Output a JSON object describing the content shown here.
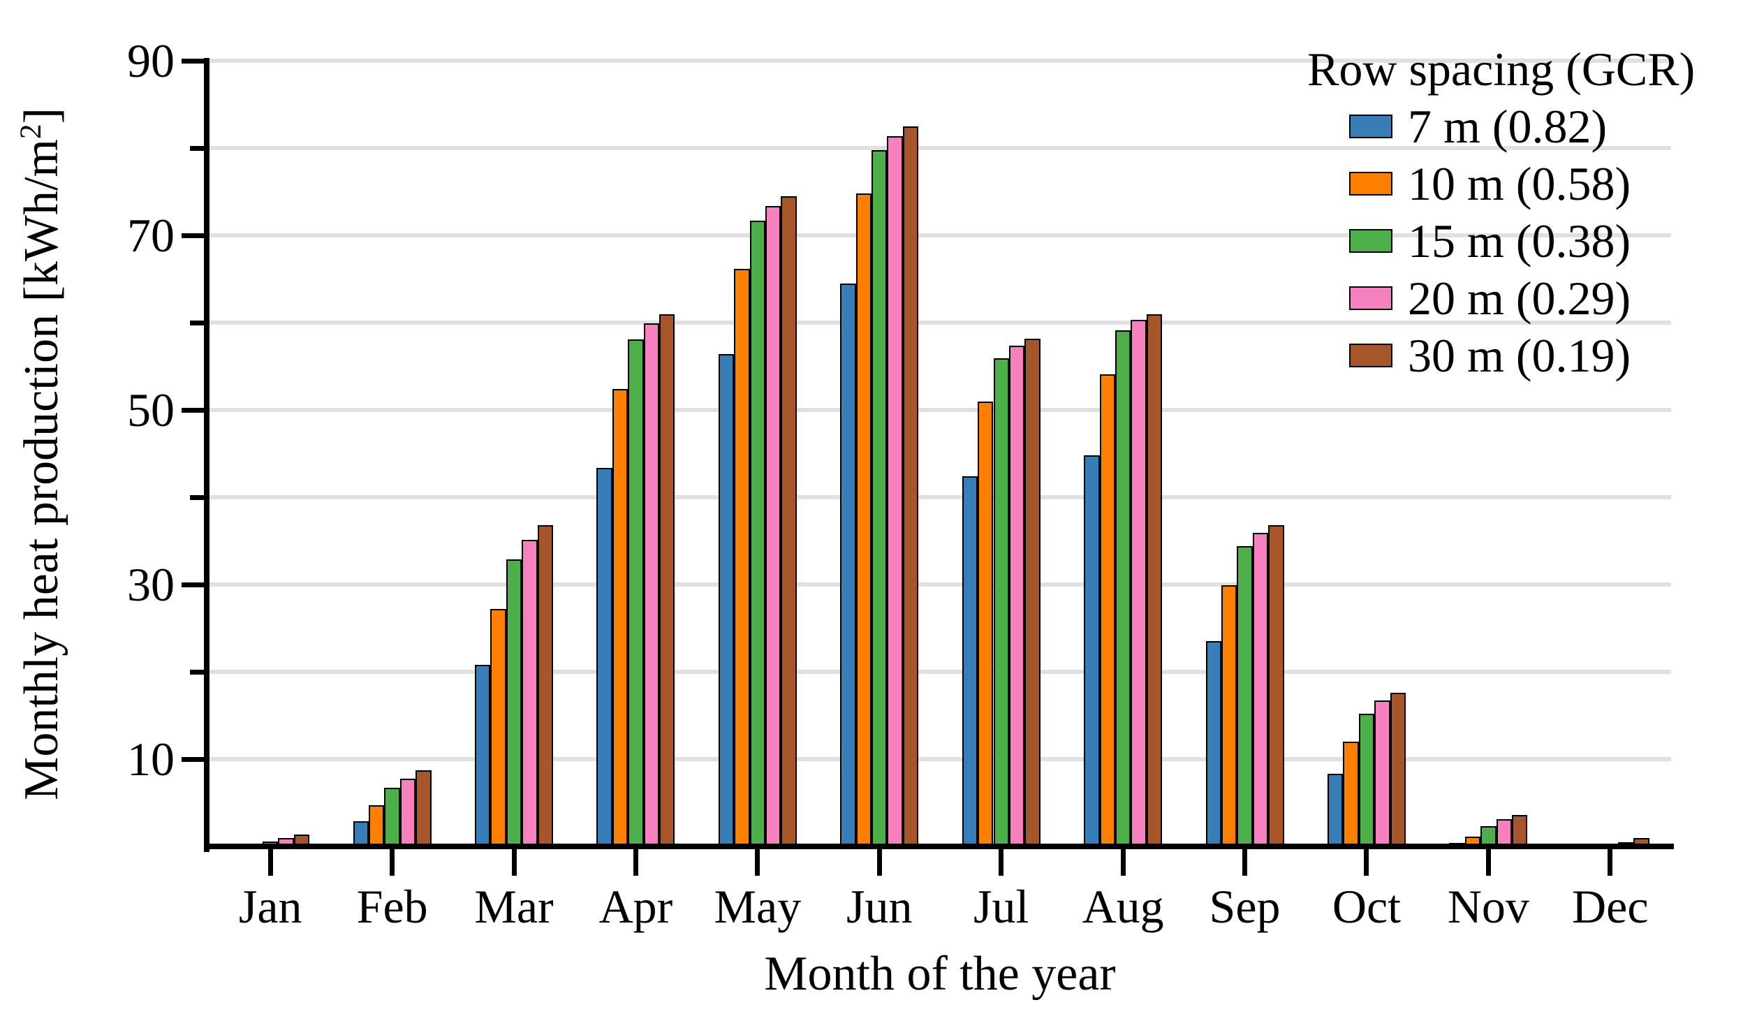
{
  "chart_data": {
    "type": "bar",
    "title": "",
    "xlabel": "Month of the year",
    "ylabel_prefix": "Monthly heat production [kWh/m",
    "ylabel_sup": "2",
    "ylabel_suffix": "]",
    "categories": [
      "Jan",
      "Feb",
      "Mar",
      "Apr",
      "May",
      "Jun",
      "Jul",
      "Aug",
      "Sep",
      "Oct",
      "Nov",
      "Dec"
    ],
    "legend_title": "Row spacing (GCR)",
    "legend_position": "upper right",
    "series": [
      {
        "name": "7 m (0.82)",
        "key": "7m",
        "color": "#377eb8",
        "values": [
          0.05,
          2.9,
          20.8,
          43.4,
          56.4,
          64.5,
          42.4,
          44.8,
          23.5,
          8.3,
          0.4,
          0.05
        ]
      },
      {
        "name": "10 m (0.58)",
        "key": "10m",
        "color": "#ff7f00",
        "values": [
          0.1,
          4.7,
          27.2,
          52.4,
          66.2,
          74.8,
          51.0,
          54.1,
          29.9,
          12.0,
          1.1,
          0.05
        ]
      },
      {
        "name": "15 m (0.38)",
        "key": "15m",
        "color": "#4daf4a",
        "values": [
          0.6,
          6.7,
          32.9,
          58.1,
          71.7,
          79.8,
          55.9,
          59.1,
          34.4,
          15.2,
          2.3,
          0.15
        ]
      },
      {
        "name": "20 m (0.29)",
        "key": "20m",
        "color": "#f781bf",
        "values": [
          1.0,
          7.8,
          35.1,
          59.9,
          73.4,
          81.4,
          57.4,
          60.3,
          35.9,
          16.7,
          3.1,
          0.5
        ]
      },
      {
        "name": "30 m (0.19)",
        "key": "30m",
        "color": "#a65628",
        "values": [
          1.4,
          8.7,
          36.8,
          61.0,
          74.5,
          82.5,
          58.2,
          61.0,
          36.8,
          17.6,
          3.6,
          1.0
        ]
      }
    ],
    "ylim": [
      0,
      90
    ],
    "yticks_major": [
      10,
      30,
      50,
      70,
      90
    ],
    "yticks_minor": [
      20,
      40,
      60,
      80
    ],
    "gridlines_every": 10,
    "grid": true,
    "colors": {
      "grid": "#e0e0e0",
      "axis": "#000000",
      "background": "#ffffff"
    }
  }
}
